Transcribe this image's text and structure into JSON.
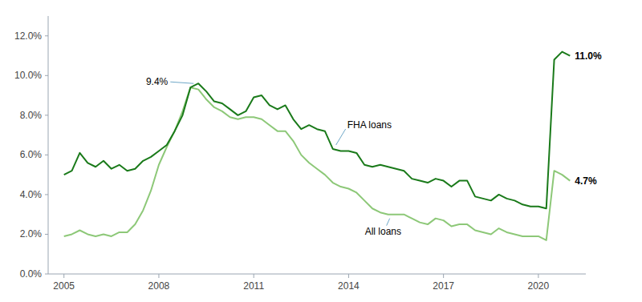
{
  "chart_data": {
    "type": "line",
    "x": [
      2005,
      2005.25,
      2005.5,
      2005.75,
      2006,
      2006.25,
      2006.5,
      2006.75,
      2007,
      2007.25,
      2007.5,
      2007.75,
      2008,
      2008.25,
      2008.5,
      2008.75,
      2009,
      2009.25,
      2009.5,
      2009.75,
      2010,
      2010.25,
      2010.5,
      2010.75,
      2011,
      2011.25,
      2011.5,
      2011.75,
      2012,
      2012.25,
      2012.5,
      2012.75,
      2013,
      2013.25,
      2013.5,
      2013.75,
      2014,
      2014.25,
      2014.5,
      2014.75,
      2015,
      2015.25,
      2015.5,
      2015.75,
      2016,
      2016.25,
      2016.5,
      2016.75,
      2017,
      2017.25,
      2017.5,
      2017.75,
      2018,
      2018.25,
      2018.5,
      2018.75,
      2019,
      2019.25,
      2019.5,
      2019.75,
      2020,
      2020.25,
      2020.5,
      2020.75,
      2021
    ],
    "series": [
      {
        "color": "#8dc878",
        "values": [
          0.019,
          0.02,
          0.022,
          0.02,
          0.019,
          0.02,
          0.019,
          0.021,
          0.021,
          0.025,
          0.032,
          0.042,
          0.055,
          0.064,
          0.072,
          0.082,
          0.094,
          0.093,
          0.088,
          0.084,
          0.082,
          0.079,
          0.078,
          0.079,
          0.079,
          0.078,
          0.075,
          0.072,
          0.072,
          0.067,
          0.06,
          0.056,
          0.053,
          0.05,
          0.046,
          0.044,
          0.043,
          0.041,
          0.037,
          0.033,
          0.031,
          0.03,
          0.03,
          0.03,
          0.028,
          0.026,
          0.025,
          0.028,
          0.027,
          0.024,
          0.025,
          0.025,
          0.022,
          0.021,
          0.02,
          0.023,
          0.021,
          0.02,
          0.019,
          0.019,
          0.019,
          0.017,
          0.052,
          0.05,
          0.047
        ]
      },
      {
        "color": "#1a7a1a",
        "values": [
          0.05,
          0.052,
          0.061,
          0.056,
          0.054,
          0.057,
          0.053,
          0.055,
          0.052,
          0.053,
          0.057,
          0.059,
          0.062,
          0.065,
          0.072,
          0.08,
          0.094,
          0.096,
          0.092,
          0.087,
          0.086,
          0.083,
          0.08,
          0.082,
          0.089,
          0.09,
          0.085,
          0.083,
          0.085,
          0.078,
          0.073,
          0.075,
          0.073,
          0.072,
          0.063,
          0.062,
          0.062,
          0.061,
          0.055,
          0.054,
          0.055,
          0.054,
          0.053,
          0.052,
          0.048,
          0.047,
          0.046,
          0.048,
          0.047,
          0.044,
          0.047,
          0.047,
          0.039,
          0.038,
          0.037,
          0.04,
          0.038,
          0.037,
          0.035,
          0.034,
          0.034,
          0.033,
          0.108,
          0.112,
          0.11
        ]
      }
    ],
    "xlim": [
      2004.5,
      2021.5
    ],
    "xticks": [
      2005,
      2008,
      2011,
      2014,
      2017,
      2020
    ],
    "ylim": [
      0.0,
      0.13
    ],
    "yticks": [
      {
        "value": 0.0,
        "label": "0.0%"
      },
      {
        "value": 0.02,
        "label": "2.0%"
      },
      {
        "value": 0.04,
        "label": "4.0%"
      },
      {
        "value": 0.06,
        "label": "6.0%"
      },
      {
        "value": 0.08,
        "label": "8.0%"
      },
      {
        "value": 0.1,
        "label": "10.0%"
      },
      {
        "value": 0.12,
        "label": "12.0%"
      }
    ],
    "grid": false,
    "annotations": [
      {
        "text": "9.4%",
        "x": 2009.1,
        "y": 0.096
      },
      {
        "text": "FHA loans",
        "x": 2013.6,
        "y": 0.065
      },
      {
        "text": "All loans",
        "x": 2015.3,
        "y": 0.028
      },
      {
        "text": "11.0%",
        "x": 2021.15,
        "y": 0.11
      },
      {
        "text": "4.7%",
        "x": 2021.15,
        "y": 0.047
      }
    ]
  }
}
